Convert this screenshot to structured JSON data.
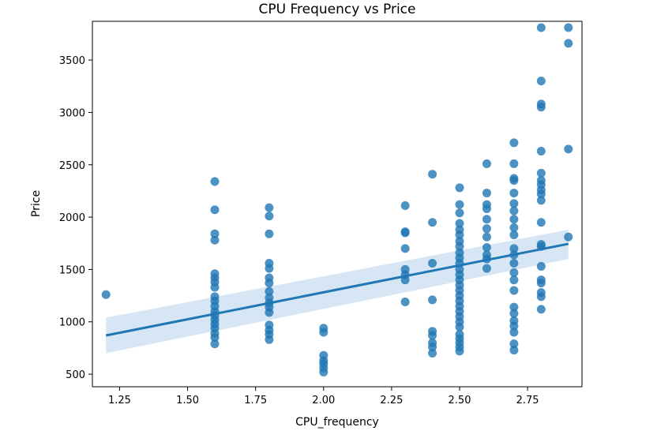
{
  "chart_data": {
    "type": "scatter",
    "title": "CPU Frequency vs Price",
    "xlabel": "CPU_frequency",
    "ylabel": "Price",
    "xlim": [
      1.15,
      2.95
    ],
    "ylim": [
      380,
      3870
    ],
    "xticks": [
      1.25,
      1.5,
      1.75,
      2.0,
      2.25,
      2.5,
      2.75
    ],
    "xtick_labels": [
      "1.25",
      "1.50",
      "1.75",
      "2.00",
      "2.25",
      "2.50",
      "2.75"
    ],
    "yticks": [
      500,
      1000,
      1500,
      2000,
      2500,
      3000,
      3500
    ],
    "ytick_labels": [
      "500",
      "1000",
      "1500",
      "2000",
      "2500",
      "3000",
      "3500"
    ],
    "grid": false,
    "point_color": "#1f77b4",
    "series": [
      {
        "points": [
          {
            "x": 1.2,
            "y": 1260
          },
          {
            "x": 1.6,
            "y": 2340
          },
          {
            "x": 1.6,
            "y": 2070
          },
          {
            "x": 1.6,
            "y": 1840
          },
          {
            "x": 1.6,
            "y": 1780
          },
          {
            "x": 1.6,
            "y": 1460
          },
          {
            "x": 1.6,
            "y": 1420
          },
          {
            "x": 1.6,
            "y": 1380
          },
          {
            "x": 1.6,
            "y": 1330
          },
          {
            "x": 1.6,
            "y": 1240
          },
          {
            "x": 1.6,
            "y": 1200
          },
          {
            "x": 1.6,
            "y": 1150
          },
          {
            "x": 1.6,
            "y": 1100
          },
          {
            "x": 1.6,
            "y": 1060
          },
          {
            "x": 1.6,
            "y": 1020
          },
          {
            "x": 1.6,
            "y": 980
          },
          {
            "x": 1.6,
            "y": 940
          },
          {
            "x": 1.6,
            "y": 890
          },
          {
            "x": 1.6,
            "y": 850
          },
          {
            "x": 1.6,
            "y": 790
          },
          {
            "x": 1.8,
            "y": 2090
          },
          {
            "x": 1.8,
            "y": 2010
          },
          {
            "x": 1.8,
            "y": 1840
          },
          {
            "x": 1.8,
            "y": 1560
          },
          {
            "x": 1.8,
            "y": 1510
          },
          {
            "x": 1.8,
            "y": 1420
          },
          {
            "x": 1.8,
            "y": 1370
          },
          {
            "x": 1.8,
            "y": 1290
          },
          {
            "x": 1.8,
            "y": 1230
          },
          {
            "x": 1.8,
            "y": 1180
          },
          {
            "x": 1.8,
            "y": 1140
          },
          {
            "x": 1.8,
            "y": 1090
          },
          {
            "x": 1.8,
            "y": 970
          },
          {
            "x": 1.8,
            "y": 920
          },
          {
            "x": 1.8,
            "y": 880
          },
          {
            "x": 1.8,
            "y": 830
          },
          {
            "x": 2.0,
            "y": 940
          },
          {
            "x": 2.0,
            "y": 900
          },
          {
            "x": 2.0,
            "y": 680
          },
          {
            "x": 2.0,
            "y": 630
          },
          {
            "x": 2.0,
            "y": 600
          },
          {
            "x": 2.0,
            "y": 560
          },
          {
            "x": 2.0,
            "y": 520
          },
          {
            "x": 2.3,
            "y": 2110
          },
          {
            "x": 2.3,
            "y": 1860
          },
          {
            "x": 2.3,
            "y": 1850
          },
          {
            "x": 2.3,
            "y": 1700
          },
          {
            "x": 2.3,
            "y": 1500
          },
          {
            "x": 2.3,
            "y": 1450
          },
          {
            "x": 2.3,
            "y": 1400
          },
          {
            "x": 2.3,
            "y": 1190
          },
          {
            "x": 2.4,
            "y": 2410
          },
          {
            "x": 2.4,
            "y": 1950
          },
          {
            "x": 2.4,
            "y": 1560
          },
          {
            "x": 2.4,
            "y": 1210
          },
          {
            "x": 2.4,
            "y": 910
          },
          {
            "x": 2.4,
            "y": 870
          },
          {
            "x": 2.4,
            "y": 800
          },
          {
            "x": 2.4,
            "y": 760
          },
          {
            "x": 2.4,
            "y": 700
          },
          {
            "x": 2.5,
            "y": 2280
          },
          {
            "x": 2.5,
            "y": 2120
          },
          {
            "x": 2.5,
            "y": 2040
          },
          {
            "x": 2.5,
            "y": 1940
          },
          {
            "x": 2.5,
            "y": 1880
          },
          {
            "x": 2.5,
            "y": 1830
          },
          {
            "x": 2.5,
            "y": 1770
          },
          {
            "x": 2.5,
            "y": 1720
          },
          {
            "x": 2.5,
            "y": 1660
          },
          {
            "x": 2.5,
            "y": 1610
          },
          {
            "x": 2.5,
            "y": 1560
          },
          {
            "x": 2.5,
            "y": 1500
          },
          {
            "x": 2.5,
            "y": 1450
          },
          {
            "x": 2.5,
            "y": 1400
          },
          {
            "x": 2.5,
            "y": 1350
          },
          {
            "x": 2.5,
            "y": 1300
          },
          {
            "x": 2.5,
            "y": 1250
          },
          {
            "x": 2.5,
            "y": 1200
          },
          {
            "x": 2.5,
            "y": 1150
          },
          {
            "x": 2.5,
            "y": 1100
          },
          {
            "x": 2.5,
            "y": 1050
          },
          {
            "x": 2.5,
            "y": 1000
          },
          {
            "x": 2.5,
            "y": 950
          },
          {
            "x": 2.5,
            "y": 880
          },
          {
            "x": 2.5,
            "y": 840
          },
          {
            "x": 2.5,
            "y": 800
          },
          {
            "x": 2.5,
            "y": 760
          },
          {
            "x": 2.5,
            "y": 720
          },
          {
            "x": 2.6,
            "y": 2510
          },
          {
            "x": 2.6,
            "y": 2230
          },
          {
            "x": 2.6,
            "y": 2120
          },
          {
            "x": 2.6,
            "y": 2080
          },
          {
            "x": 2.6,
            "y": 1980
          },
          {
            "x": 2.6,
            "y": 1890
          },
          {
            "x": 2.6,
            "y": 1810
          },
          {
            "x": 2.6,
            "y": 1710
          },
          {
            "x": 2.6,
            "y": 1640
          },
          {
            "x": 2.6,
            "y": 1600
          },
          {
            "x": 2.6,
            "y": 1510
          },
          {
            "x": 2.7,
            "y": 2710
          },
          {
            "x": 2.7,
            "y": 2510
          },
          {
            "x": 2.7,
            "y": 2370
          },
          {
            "x": 2.7,
            "y": 2350
          },
          {
            "x": 2.7,
            "y": 2230
          },
          {
            "x": 2.7,
            "y": 2130
          },
          {
            "x": 2.7,
            "y": 2060
          },
          {
            "x": 2.7,
            "y": 1980
          },
          {
            "x": 2.7,
            "y": 1900
          },
          {
            "x": 2.7,
            "y": 1830
          },
          {
            "x": 2.7,
            "y": 1700
          },
          {
            "x": 2.7,
            "y": 1640
          },
          {
            "x": 2.7,
            "y": 1560
          },
          {
            "x": 2.7,
            "y": 1470
          },
          {
            "x": 2.7,
            "y": 1400
          },
          {
            "x": 2.7,
            "y": 1300
          },
          {
            "x": 2.7,
            "y": 1140
          },
          {
            "x": 2.7,
            "y": 1080
          },
          {
            "x": 2.7,
            "y": 1010
          },
          {
            "x": 2.7,
            "y": 960
          },
          {
            "x": 2.7,
            "y": 900
          },
          {
            "x": 2.7,
            "y": 790
          },
          {
            "x": 2.7,
            "y": 730
          },
          {
            "x": 2.8,
            "y": 3810
          },
          {
            "x": 2.8,
            "y": 3300
          },
          {
            "x": 2.8,
            "y": 3080
          },
          {
            "x": 2.8,
            "y": 3050
          },
          {
            "x": 2.8,
            "y": 2630
          },
          {
            "x": 2.8,
            "y": 2420
          },
          {
            "x": 2.8,
            "y": 2350
          },
          {
            "x": 2.8,
            "y": 2310
          },
          {
            "x": 2.8,
            "y": 2260
          },
          {
            "x": 2.8,
            "y": 2220
          },
          {
            "x": 2.8,
            "y": 2160
          },
          {
            "x": 2.8,
            "y": 1950
          },
          {
            "x": 2.8,
            "y": 1740
          },
          {
            "x": 2.8,
            "y": 1720
          },
          {
            "x": 2.8,
            "y": 1530
          },
          {
            "x": 2.8,
            "y": 1400
          },
          {
            "x": 2.8,
            "y": 1370
          },
          {
            "x": 2.8,
            "y": 1280
          },
          {
            "x": 2.8,
            "y": 1240
          },
          {
            "x": 2.8,
            "y": 1120
          },
          {
            "x": 2.9,
            "y": 3810
          },
          {
            "x": 2.9,
            "y": 3660
          },
          {
            "x": 2.9,
            "y": 2650
          },
          {
            "x": 2.9,
            "y": 1810
          }
        ]
      }
    ],
    "regression": {
      "x": [
        1.2,
        2.9
      ],
      "y": [
        870,
        1745
      ],
      "ci_lower": [
        700,
        1600
      ],
      "ci_upper": [
        1040,
        1880
      ],
      "color": "#1f77b4",
      "band_color": "#c6dbef"
    }
  }
}
